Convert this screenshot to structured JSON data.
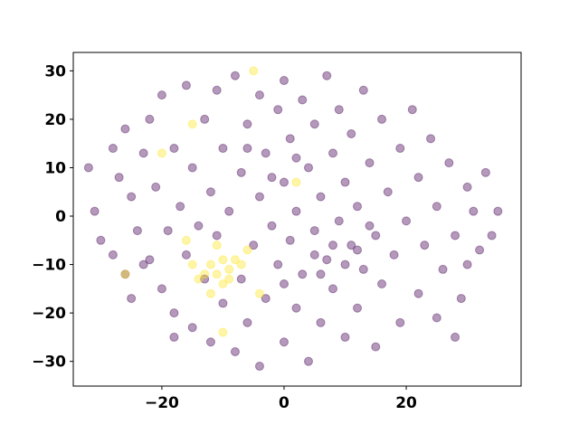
{
  "chart_data": {
    "type": "scatter",
    "xlim": [
      -34.5,
      38.8
    ],
    "ylim": [
      -35.1,
      33.8
    ],
    "xticks": [
      {
        "value": -20,
        "label": "−20"
      },
      0,
      20
    ],
    "yticks": [
      {
        "value": -30,
        "label": "−30"
      },
      {
        "value": -20,
        "label": "−20"
      },
      {
        "value": -10,
        "label": "−10"
      },
      0,
      10,
      20,
      30
    ],
    "series": [
      {
        "color": "#440154",
        "x": [
          -32,
          -31,
          -30,
          -28,
          -28,
          -27,
          -26,
          -26,
          -25,
          -25,
          -24,
          -23,
          -22,
          -22,
          -21,
          -20,
          -20,
          -19,
          -18,
          -18,
          -17,
          -16,
          -16,
          -15,
          -15,
          -14,
          -13,
          -13,
          -12,
          -12,
          -11,
          -11,
          -10,
          -10,
          -9,
          -8,
          -8,
          -7,
          -7,
          -6,
          -6,
          -5,
          -4,
          -4,
          -4,
          -3,
          -3,
          -2,
          -1,
          -1,
          0,
          0,
          0,
          1,
          1,
          2,
          2,
          3,
          3,
          4,
          4,
          5,
          5,
          6,
          6,
          7,
          7,
          8,
          8,
          9,
          9,
          10,
          10,
          11,
          11,
          12,
          12,
          13,
          13,
          14,
          15,
          15,
          16,
          16,
          17,
          18,
          19,
          19,
          20,
          21,
          22,
          22,
          23,
          24,
          25,
          25,
          26,
          27,
          28,
          29,
          30,
          30,
          31,
          32,
          33,
          34,
          35,
          28,
          -18,
          -23,
          5,
          8,
          10,
          12,
          6,
          -2,
          2,
          -6,
          0,
          14
        ],
        "values": [
          10,
          1,
          -5,
          14,
          -8,
          8,
          18,
          -12,
          4,
          -17,
          -3,
          13,
          20,
          -9,
          6,
          25,
          -15,
          -3,
          14,
          -20,
          2,
          27,
          -8,
          10,
          -23,
          -2,
          20,
          -13,
          5,
          -26,
          26,
          -4,
          14,
          -18,
          1,
          29,
          -28,
          9,
          -13,
          19,
          -22,
          -6,
          25,
          4,
          -31,
          13,
          -17,
          -2,
          22,
          -10,
          28,
          7,
          -26,
          -5,
          16,
          -19,
          1,
          24,
          -12,
          10,
          -30,
          -3,
          19,
          -22,
          4,
          29,
          -9,
          13,
          -15,
          -1,
          22,
          -25,
          7,
          -6,
          17,
          -19,
          2,
          26,
          -11,
          11,
          -4,
          -27,
          20,
          -14,
          5,
          -8,
          14,
          -22,
          -1,
          22,
          -16,
          8,
          -6,
          16,
          -21,
          2,
          -11,
          11,
          -4,
          -17,
          6,
          -10,
          1,
          -7,
          9,
          -4,
          1,
          -25,
          -25,
          -10,
          -8,
          -6,
          -10,
          -7,
          -12,
          8,
          12,
          14,
          -14,
          -2
        ]
      },
      {
        "color": "#fde725",
        "x": [
          -5,
          -15,
          2,
          -4,
          -10,
          -12,
          -10,
          -9,
          -8,
          -7,
          -11,
          -13,
          -15,
          -14,
          -9,
          -12,
          -10,
          -16,
          -6,
          -11,
          -20,
          -26
        ],
        "values": [
          30,
          19,
          7,
          -16,
          -24,
          -10,
          -9,
          -11,
          -9,
          -10,
          -12,
          -12,
          -10,
          -13,
          -13,
          -16,
          -14,
          -5,
          -7,
          -6,
          13,
          -12
        ]
      }
    ]
  }
}
